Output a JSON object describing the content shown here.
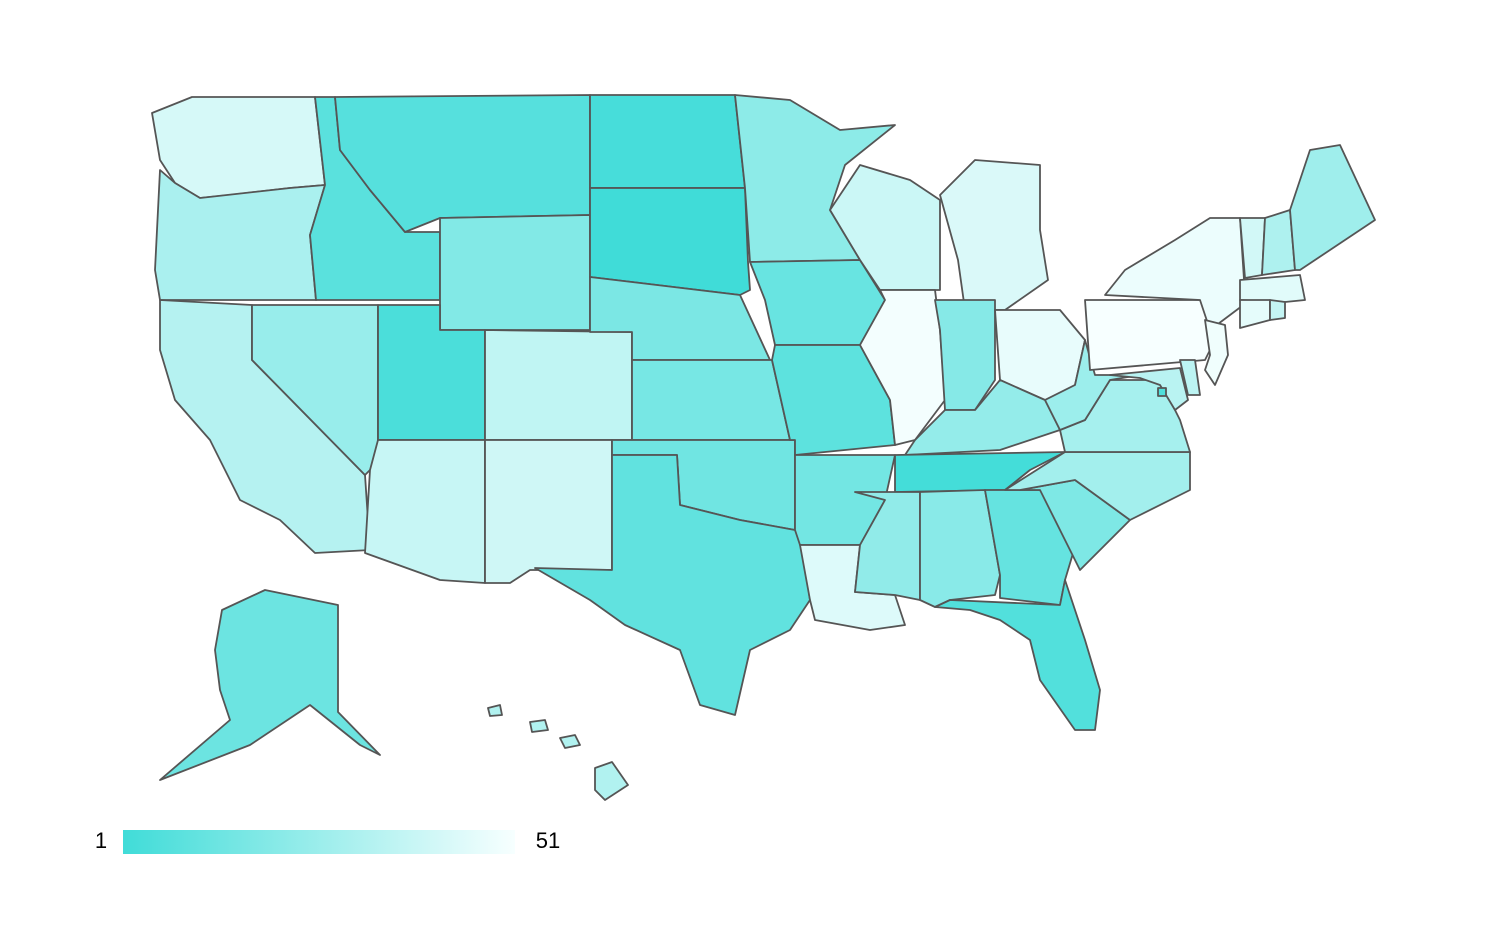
{
  "map": {
    "type": "choropleth",
    "values": [
      42,
      30,
      33,
      25,
      8,
      7,
      19,
      4,
      36,
      38,
      40,
      3,
      1,
      17,
      16,
      14,
      10,
      22,
      12,
      9,
      15,
      44,
      39,
      50,
      43,
      20,
      47,
      24,
      2,
      23,
      21,
      11,
      6,
      18,
      28,
      29,
      26,
      51,
      48,
      41,
      31,
      27,
      45,
      46,
      37,
      49,
      35,
      34,
      5,
      13,
      32
    ],
    "legend": {
      "min": 1,
      "max": 51,
      "colors": [
        "#40dcd8",
        "#f7ffff"
      ]
    },
    "border_color": "#555555"
  }
}
